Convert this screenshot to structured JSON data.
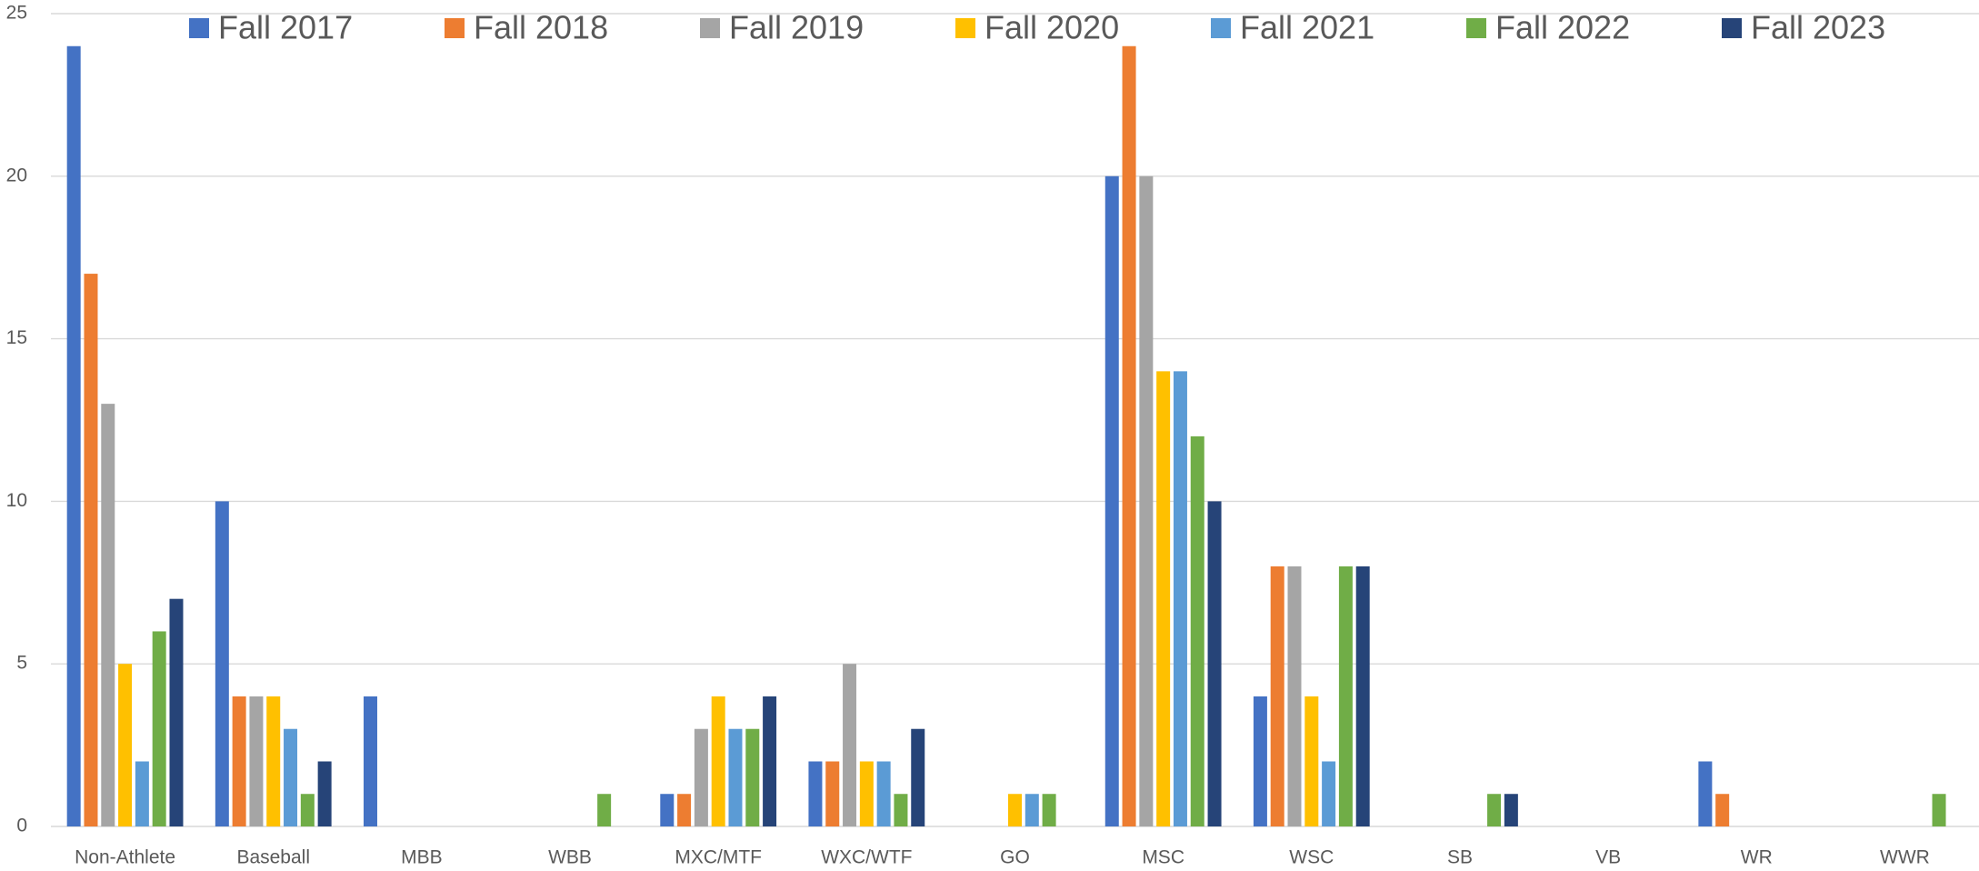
{
  "chart_data": {
    "type": "bar",
    "categories": [
      "Non-Athlete",
      "Baseball",
      "MBB",
      "WBB",
      "MXC/MTF",
      "WXC/WTF",
      "GO",
      "MSC",
      "WSC",
      "SB",
      "VB",
      "WR",
      "WWR"
    ],
    "series": [
      {
        "name": "Fall 2017",
        "color": "#4472c4",
        "values": [
          24,
          10,
          4,
          0,
          1,
          2,
          0,
          20,
          4,
          0,
          0,
          2,
          0
        ]
      },
      {
        "name": "Fall 2018",
        "color": "#ed7d31",
        "values": [
          17,
          4,
          0,
          0,
          1,
          2,
          0,
          24,
          8,
          0,
          0,
          1,
          0
        ]
      },
      {
        "name": "Fall 2019",
        "color": "#a5a5a5",
        "values": [
          13,
          4,
          0,
          0,
          3,
          5,
          0,
          20,
          8,
          0,
          0,
          0,
          0
        ]
      },
      {
        "name": "Fall 2020",
        "color": "#ffc000",
        "values": [
          5,
          4,
          0,
          0,
          4,
          2,
          1,
          14,
          4,
          0,
          0,
          0,
          0
        ]
      },
      {
        "name": "Fall 2021",
        "color": "#5b9bd5",
        "values": [
          2,
          3,
          0,
          0,
          3,
          2,
          1,
          14,
          2,
          0,
          0,
          0,
          0
        ]
      },
      {
        "name": "Fall 2022",
        "color": "#70ad47",
        "values": [
          6,
          1,
          0,
          1,
          3,
          1,
          1,
          12,
          8,
          1,
          0,
          0,
          1
        ]
      },
      {
        "name": "Fall 2023",
        "color": "#264478",
        "values": [
          7,
          2,
          0,
          0,
          4,
          3,
          0,
          10,
          8,
          1,
          0,
          0,
          0
        ]
      }
    ],
    "ylim": [
      0,
      25
    ],
    "yticks": [
      0,
      5,
      10,
      15,
      20,
      25
    ],
    "grid": true,
    "legend": "top"
  }
}
